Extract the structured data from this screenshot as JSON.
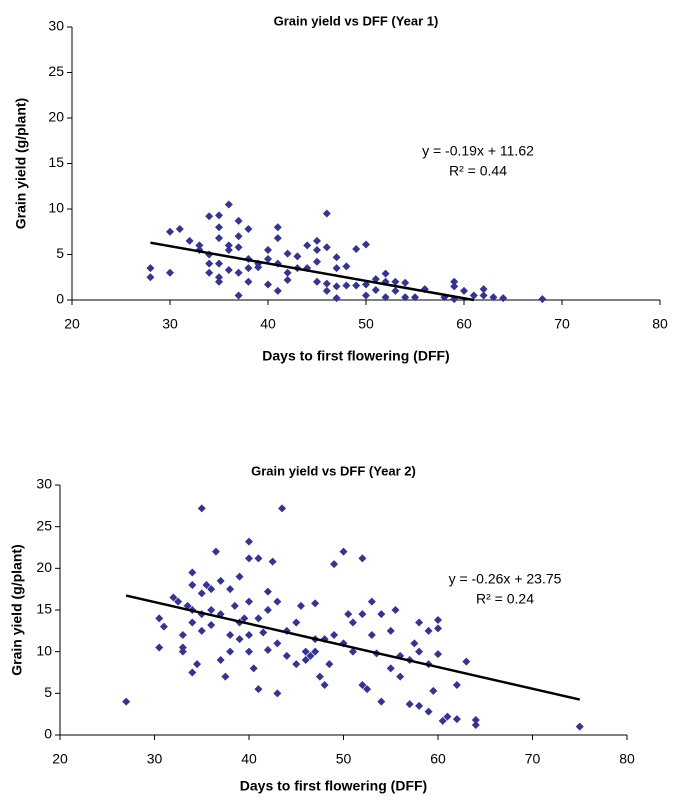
{
  "chart_data": [
    {
      "type": "scatter",
      "title": "Grain yield vs DFF (Year 1)",
      "x_label": "Days to first flowering (DFF)",
      "y_label": "Grain yield (g/plant)",
      "annotations": [
        "y = -0.19x + 11.62",
        "R² = 0.44"
      ],
      "xlim": [
        20,
        80
      ],
      "xticks": [
        20,
        30,
        40,
        50,
        60,
        70,
        80
      ],
      "ylim": [
        0,
        30
      ],
      "yticks": [
        0,
        5,
        10,
        15,
        20,
        25,
        30
      ],
      "color": "#333399",
      "trendline": {
        "color": "#000000",
        "x": [
          28,
          61
        ],
        "y": [
          6.3,
          0
        ]
      },
      "x": [
        28,
        28,
        30,
        30,
        31,
        32,
        33,
        33,
        34,
        34,
        34,
        34,
        35,
        35,
        35,
        35,
        35,
        35,
        36,
        36,
        36,
        36,
        37,
        37,
        37,
        37,
        37,
        38,
        38,
        38,
        38,
        39,
        39,
        40,
        40,
        40,
        41,
        41,
        41,
        41,
        42,
        42,
        42,
        43,
        43,
        44,
        44,
        45,
        45,
        45,
        45,
        46,
        46,
        46,
        46,
        47,
        47,
        47,
        47,
        48,
        48,
        49,
        49,
        50,
        50,
        50,
        51,
        51,
        52,
        52,
        52,
        53,
        53,
        54,
        54,
        55,
        56,
        58,
        59,
        59,
        59,
        60,
        61,
        62,
        62,
        63,
        64,
        68
      ],
      "y": [
        3.5,
        2.5,
        7.5,
        3,
        7.8,
        6.5,
        6,
        5.5,
        9.2,
        5,
        4,
        3,
        9.3,
        8,
        6.8,
        4,
        2.5,
        2,
        10.5,
        6,
        5.5,
        3.3,
        8.7,
        7,
        5.8,
        3,
        0.5,
        7.8,
        4.5,
        3.5,
        2,
        4,
        3.6,
        5.5,
        4.5,
        1.7,
        8,
        6.8,
        4,
        1,
        5.1,
        3,
        2.2,
        4.8,
        3.5,
        6,
        3.5,
        6.5,
        5.5,
        4.2,
        2,
        9.5,
        5.8,
        1,
        1.8,
        4.7,
        3.5,
        1.5,
        0.2,
        3.7,
        1.6,
        5.6,
        1.6,
        6.1,
        1.7,
        0.5,
        2.3,
        1.1,
        2.9,
        2,
        0.3,
        2,
        1,
        1.9,
        0.3,
        0.3,
        1.2,
        0.3,
        2,
        1.5,
        0.1,
        1,
        0.5,
        1.2,
        0.5,
        0.3,
        0.2,
        0.1
      ]
    },
    {
      "type": "scatter",
      "title": "Grain yield vs DFF (Year 2)",
      "x_label": "Days to first flowering (DFF)",
      "y_label": "Grain yield (g/plant)",
      "annotations": [
        "y = -0.26x + 23.75",
        "R² = 0.24"
      ],
      "xlim": [
        20,
        80
      ],
      "xticks": [
        20,
        30,
        40,
        50,
        60,
        70,
        80
      ],
      "ylim": [
        0,
        30
      ],
      "yticks": [
        0,
        5,
        10,
        15,
        20,
        25,
        30
      ],
      "color": "#333399",
      "trendline": {
        "color": "#000000",
        "x": [
          27,
          75
        ],
        "y": [
          16.73,
          4.25
        ]
      },
      "x": [
        27,
        30.5,
        30.5,
        31,
        32,
        32.5,
        33,
        33,
        33,
        33.5,
        34,
        34,
        34,
        34,
        34,
        34.5,
        35,
        35,
        35,
        35,
        35.5,
        36,
        36,
        36,
        36.5,
        37,
        37,
        37,
        37.5,
        38,
        38,
        38,
        38.5,
        39,
        39,
        39,
        39.5,
        40,
        40,
        40,
        40,
        40,
        40.5,
        41,
        41,
        41,
        41.5,
        42,
        42,
        42,
        42.5,
        43,
        43,
        43,
        43.5,
        44,
        44,
        45,
        45,
        45.5,
        46,
        46,
        46.5,
        47,
        47,
        47,
        47.5,
        48,
        48,
        48.5,
        49,
        49,
        50,
        50,
        50.5,
        51,
        51,
        52,
        52,
        52,
        52.5,
        53,
        53,
        53.5,
        54,
        54,
        55,
        55,
        55.5,
        56,
        56,
        57,
        57,
        57.5,
        58,
        58,
        58,
        59,
        59,
        59,
        59.5,
        60,
        60,
        60,
        60.5,
        61,
        62,
        62,
        63,
        64,
        64,
        75
      ],
      "y": [
        4,
        14,
        10.5,
        13,
        16.5,
        16,
        12,
        10.5,
        10,
        15.5,
        19.5,
        18,
        15,
        13.5,
        7.5,
        8.5,
        27.2,
        17,
        14.5,
        12.5,
        18,
        15,
        13.2,
        17.5,
        22,
        18.5,
        14.5,
        9,
        7,
        12,
        10,
        17.5,
        15.5,
        19,
        13.5,
        11.5,
        14,
        23.2,
        21.2,
        16,
        12,
        10,
        8,
        21.2,
        14,
        5.5,
        12.3,
        17.2,
        15,
        10.2,
        20.8,
        5,
        16,
        11,
        27.2,
        12.5,
        9.5,
        13.5,
        8.5,
        15.5,
        10,
        9,
        9.5,
        15.8,
        11.5,
        10,
        7,
        11.5,
        6,
        8.5,
        12,
        20.5,
        22,
        11,
        14.5,
        13.5,
        10,
        14.5,
        21.2,
        6,
        5.5,
        16,
        12,
        9.8,
        14.5,
        4,
        12.5,
        8,
        15,
        9.5,
        7,
        9,
        3.7,
        11,
        13.5,
        10,
        3.5,
        12.5,
        8.5,
        2.8,
        5.3,
        13.8,
        12.8,
        9.7,
        1.7,
        2.2,
        6,
        1.9,
        8.8,
        1.8,
        1.2,
        1
      ]
    }
  ]
}
